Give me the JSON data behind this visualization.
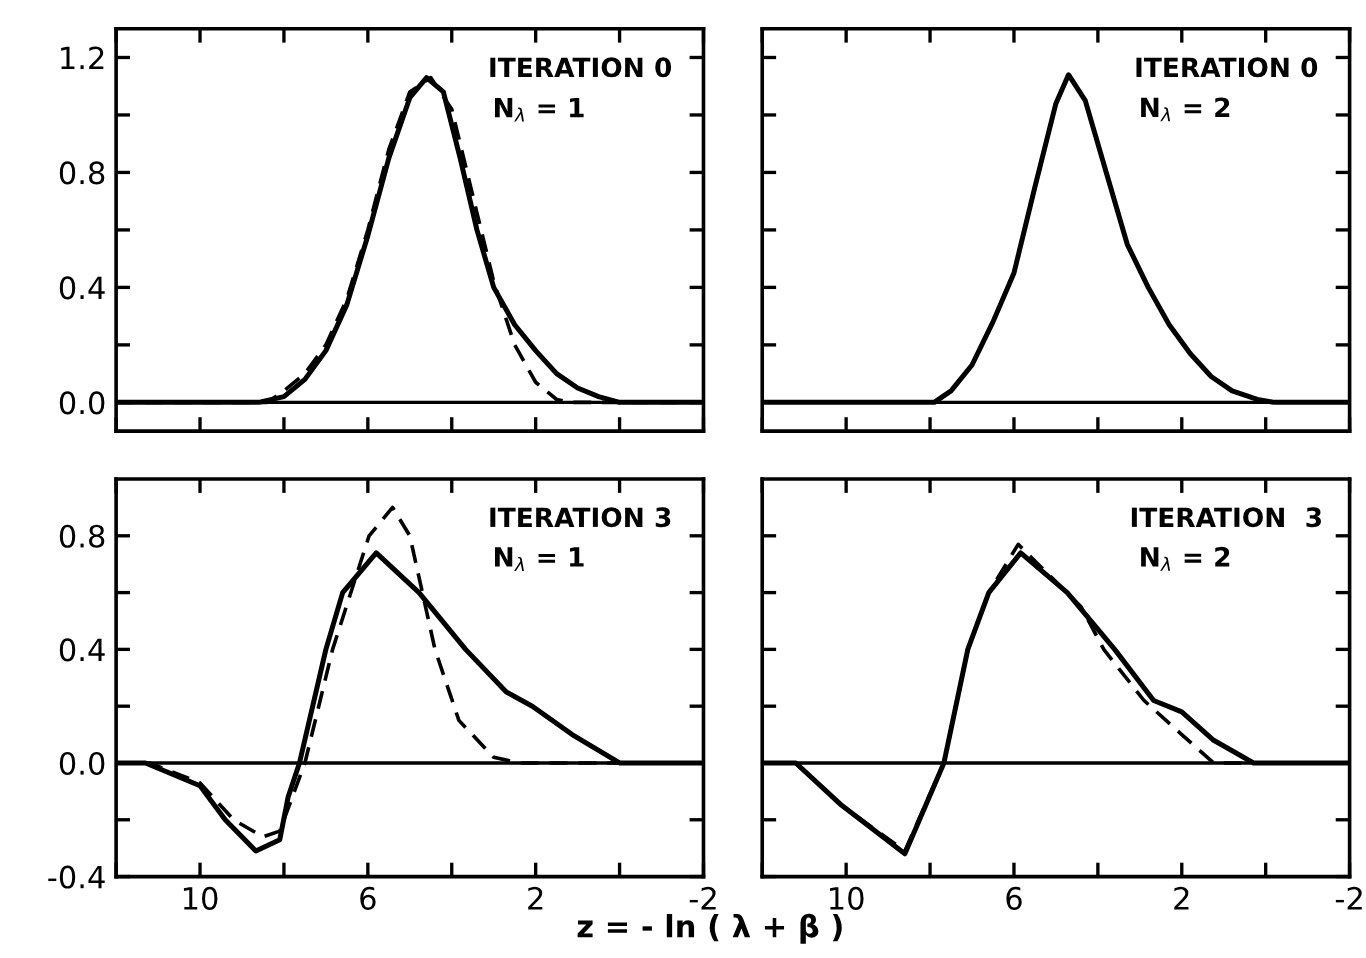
{
  "chart_data": [
    {
      "type": "line",
      "annotations": [
        "ITERATION 0",
        "N$_{λ}$ = 1"
      ],
      "xlim": [
        12,
        -2
      ],
      "ylim": [
        -0.1,
        1.3
      ],
      "tick_labels": "y",
      "xticks": [
        {
          "value": 12,
          "label": null
        },
        {
          "value": 10,
          "label": null
        },
        {
          "value": 8,
          "label": null
        },
        {
          "value": 6,
          "label": null
        },
        {
          "value": 4,
          "label": null
        },
        {
          "value": 2,
          "label": null
        },
        {
          "value": 0,
          "label": null
        },
        {
          "value": -2,
          "label": null
        }
      ],
      "yticks": [
        {
          "value": 0,
          "label": "0.0"
        },
        {
          "value": 0.2,
          "label": null
        },
        {
          "value": 0.4,
          "label": "0.4"
        },
        {
          "value": 0.6,
          "label": null
        },
        {
          "value": 0.8,
          "label": "0.8"
        },
        {
          "value": 1.0,
          "label": null
        },
        {
          "value": 1.2,
          "label": "1.2"
        }
      ],
      "ref_lines": [
        {
          "axis": "y",
          "value": 0,
          "color": "#000000"
        }
      ],
      "series": [
        {
          "color": "#000000",
          "line_style": "solid",
          "x": [
            12,
            8.6,
            8.0,
            7.5,
            7.0,
            6.5,
            6.0,
            5.5,
            5.0,
            4.6,
            4.2,
            3.8,
            3.4,
            3.0,
            2.5,
            2.0,
            1.5,
            1.0,
            0.5,
            0,
            -2
          ],
          "values": [
            0,
            0,
            0.02,
            0.08,
            0.18,
            0.34,
            0.58,
            0.85,
            1.06,
            1.13,
            1.08,
            0.85,
            0.6,
            0.4,
            0.27,
            0.18,
            0.1,
            0.05,
            0.02,
            0,
            0
          ]
        },
        {
          "color": "#000000",
          "line_style": "dashed",
          "x": [
            12,
            8.4,
            8.0,
            7.5,
            7.0,
            6.5,
            6.0,
            5.5,
            5.0,
            4.5,
            4.0,
            3.5,
            3.0,
            2.5,
            2.0,
            1.5,
            1.2,
            -2
          ],
          "values": [
            0,
            0,
            0.04,
            0.1,
            0.2,
            0.36,
            0.6,
            0.88,
            1.08,
            1.13,
            1.02,
            0.72,
            0.42,
            0.2,
            0.07,
            0.01,
            0,
            0
          ]
        }
      ]
    },
    {
      "type": "line",
      "annotations": [
        "ITERATION 0",
        "N$_{λ}$ = 2"
      ],
      "xlim": [
        12,
        -2
      ],
      "ylim": [
        -0.1,
        1.3
      ],
      "tick_labels": false,
      "xticks": [
        {
          "value": 12,
          "label": null
        },
        {
          "value": 10,
          "label": null
        },
        {
          "value": 8,
          "label": null
        },
        {
          "value": 6,
          "label": null
        },
        {
          "value": 4,
          "label": null
        },
        {
          "value": 2,
          "label": null
        },
        {
          "value": 0,
          "label": null
        },
        {
          "value": -2,
          "label": null
        }
      ],
      "yticks": [
        {
          "value": 0,
          "label": null
        },
        {
          "value": 0.2,
          "label": null
        },
        {
          "value": 0.4,
          "label": null
        },
        {
          "value": 0.6,
          "label": null
        },
        {
          "value": 0.8,
          "label": null
        },
        {
          "value": 1.0,
          "label": null
        },
        {
          "value": 1.2,
          "label": null
        }
      ],
      "ref_lines": [
        {
          "axis": "y",
          "value": 0,
          "color": "#000000"
        }
      ],
      "series": [
        {
          "color": "#000000",
          "line_style": "solid",
          "x": [
            12,
            7.9,
            7.5,
            7.0,
            6.5,
            6.0,
            5.5,
            5.0,
            4.7,
            4.3,
            3.8,
            3.3,
            2.8,
            2.3,
            1.8,
            1.3,
            0.8,
            0.2,
            -0.2,
            -2
          ],
          "values": [
            0,
            0,
            0.04,
            0.13,
            0.28,
            0.45,
            0.75,
            1.04,
            1.14,
            1.05,
            0.8,
            0.55,
            0.4,
            0.27,
            0.17,
            0.09,
            0.04,
            0.01,
            0,
            0
          ]
        }
      ]
    },
    {
      "type": "line",
      "annotations": [
        "ITERATION 3",
        "N$_{λ}$ = 1"
      ],
      "xlabel": "z = - ln ( λ + β )",
      "xlim": [
        12,
        -2
      ],
      "ylim": [
        -0.4,
        1.0
      ],
      "xticks": [
        {
          "value": 12,
          "label": null
        },
        {
          "value": 10,
          "label": "10"
        },
        {
          "value": 8,
          "label": null
        },
        {
          "value": 6,
          "label": "6"
        },
        {
          "value": 4,
          "label": null
        },
        {
          "value": 2,
          "label": "2"
        },
        {
          "value": 0,
          "label": null
        },
        {
          "value": -2,
          "label": "-2"
        }
      ],
      "yticks": [
        {
          "value": -0.4,
          "label": "-0.4"
        },
        {
          "value": -0.2,
          "label": null
        },
        {
          "value": 0,
          "label": "0.0"
        },
        {
          "value": 0.2,
          "label": null
        },
        {
          "value": 0.4,
          "label": "0.4"
        },
        {
          "value": 0.6,
          "label": null
        },
        {
          "value": 0.8,
          "label": "0.8"
        }
      ],
      "ref_lines": [
        {
          "axis": "y",
          "value": 0,
          "color": "#000000"
        }
      ],
      "series": [
        {
          "color": "#000000",
          "line_style": "solid",
          "x": [
            12,
            11.3,
            10.0,
            9.4,
            8.67,
            8.1,
            7.9,
            7.63,
            7.0,
            6.6,
            5.8,
            4.78,
            3.67,
            2.7,
            2.08,
            1.13,
            0.0,
            -2
          ],
          "values": [
            0,
            0,
            -0.08,
            -0.2,
            -0.31,
            -0.27,
            -0.12,
            0,
            0.4,
            0.6,
            0.74,
            0.6,
            0.4,
            0.25,
            0.2,
            0.1,
            0,
            0
          ]
        },
        {
          "color": "#000000",
          "line_style": "dashed",
          "x": [
            12,
            11.2,
            10.0,
            9.2,
            8.5,
            8.1,
            7.5,
            6.84,
            5.97,
            5.41,
            5.0,
            4.4,
            3.83,
            3.0,
            2.4,
            -2
          ],
          "values": [
            0,
            0,
            -0.07,
            -0.2,
            -0.26,
            -0.24,
            0,
            0.4,
            0.8,
            0.9,
            0.8,
            0.4,
            0.15,
            0.02,
            0,
            0
          ]
        }
      ]
    },
    {
      "type": "line",
      "annotations": [
        "ITERATION  3",
        "N$_{λ}$ = 2"
      ],
      "xlim": [
        12,
        -2
      ],
      "ylim": [
        -0.4,
        1.0
      ],
      "tick_labels": "x",
      "xticks": [
        {
          "value": 12,
          "label": null
        },
        {
          "value": 10,
          "label": "10"
        },
        {
          "value": 8,
          "label": null
        },
        {
          "value": 6,
          "label": "6"
        },
        {
          "value": 4,
          "label": null
        },
        {
          "value": 2,
          "label": "2"
        },
        {
          "value": 0,
          "label": null
        },
        {
          "value": -2,
          "label": "-2"
        }
      ],
      "yticks": [
        {
          "value": -0.4,
          "label": null
        },
        {
          "value": -0.2,
          "label": null
        },
        {
          "value": 0,
          "label": null
        },
        {
          "value": 0.2,
          "label": null
        },
        {
          "value": 0.4,
          "label": null
        },
        {
          "value": 0.6,
          "label": null
        },
        {
          "value": 0.8,
          "label": null
        }
      ],
      "ref_lines": [
        {
          "axis": "y",
          "value": 0,
          "color": "#000000"
        }
      ],
      "series": [
        {
          "color": "#000000",
          "line_style": "solid",
          "x": [
            12,
            11.2,
            10.1,
            8.6,
            7.67,
            7.1,
            6.6,
            5.84,
            4.73,
            3.6,
            2.67,
            2.0,
            1.24,
            0.29,
            -2
          ],
          "values": [
            0,
            0,
            -0.15,
            -0.32,
            0,
            0.4,
            0.6,
            0.74,
            0.6,
            0.4,
            0.22,
            0.18,
            0.08,
            0,
            0
          ]
        },
        {
          "color": "#000000",
          "line_style": "dashed",
          "x": [
            12,
            11.2,
            10.1,
            8.6,
            7.67,
            7.1,
            6.6,
            5.9,
            4.4,
            3.86,
            2.9,
            2.0,
            1.24,
            -2
          ],
          "values": [
            0,
            0,
            -0.15,
            -0.31,
            0,
            0.4,
            0.6,
            0.77,
            0.55,
            0.4,
            0.22,
            0.1,
            0,
            0
          ]
        }
      ]
    }
  ]
}
